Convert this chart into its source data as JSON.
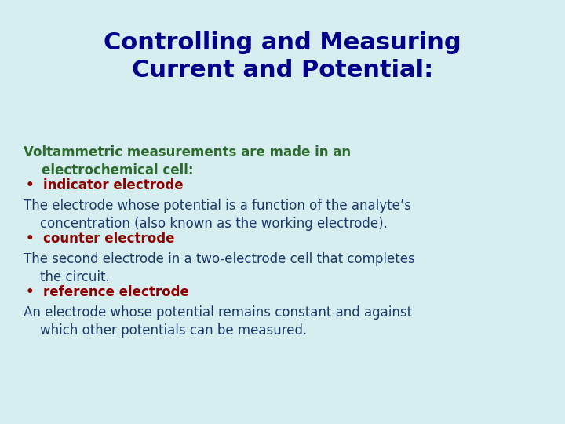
{
  "title_line1": "Controlling and Measuring",
  "title_line2": "Current and Potential:",
  "title_color": "#00008B",
  "background_color": "#D6EEF0",
  "body_green_color": "#2D6A2D",
  "body_blue_color": "#1C3A6B",
  "bullet_color": "#8B0000",
  "title_fontsize": 22,
  "body_fontsize": 12,
  "bullet_fontsize": 12,
  "content": [
    {
      "type": "body",
      "text": "Voltammetric measurements are made in an\n    electrochemical cell:",
      "color": "#2D6A2D",
      "bold": true
    },
    {
      "type": "bullet",
      "text": "indicator electrode",
      "color": "#8B0000",
      "bold": true
    },
    {
      "type": "body",
      "text": "The electrode whose potential is a function of the analyte’s\n    concentration (also known as the working electrode).",
      "color": "#1C3A6B",
      "bold": false
    },
    {
      "type": "bullet",
      "text": "counter electrode",
      "color": "#8B0000",
      "bold": true
    },
    {
      "type": "body",
      "text": "The second electrode in a two-electrode cell that completes\n    the circuit.",
      "color": "#1C3A6B",
      "bold": false
    },
    {
      "type": "bullet",
      "text": "reference electrode",
      "color": "#8B0000",
      "bold": true
    },
    {
      "type": "body",
      "text": "An electrode whose potential remains constant and against\n    which other potentials can be measured.",
      "color": "#1C3A6B",
      "bold": false
    }
  ]
}
